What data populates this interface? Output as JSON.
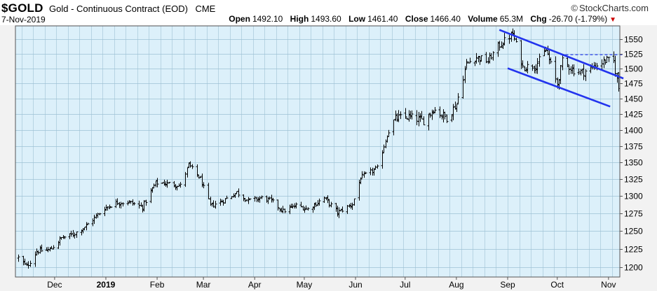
{
  "header": {
    "ticker": "$GOLD",
    "description": "Gold - Continuous Contract (EOD)",
    "exchange": "CME",
    "brand": "StockCharts.com",
    "date": "7-Nov-2019",
    "open_label": "Open",
    "open": "1492.10",
    "high_label": "High",
    "high": "1493.60",
    "low_label": "Low",
    "low": "1461.40",
    "close_label": "Close",
    "close": "1466.40",
    "volume_label": "Volume",
    "volume": "65.3M",
    "chg_label": "Chg",
    "chg": "-26.70 (-1.79%)"
  },
  "colors": {
    "plot_bg": "#dcf0fa",
    "grid": "#9ec2d4",
    "bars": "#000000",
    "trendline": "#2233ee",
    "down_arrow": "#cc0000"
  },
  "chart_data": {
    "type": "ohlc",
    "x_range": [
      "2018-11-09",
      "2019-11-07"
    ],
    "ylim": [
      1187,
      1573
    ],
    "y_scale": "log",
    "y_ticks": [
      1200,
      1225,
      1250,
      1275,
      1300,
      1325,
      1350,
      1375,
      1400,
      1425,
      1450,
      1475,
      1500,
      1525,
      1550
    ],
    "x_tick_labels": [
      {
        "date": "2018-12-01",
        "label": "Dec"
      },
      {
        "date": "2019-01-01",
        "label": "2019",
        "bold": true
      },
      {
        "date": "2019-02-01",
        "label": "Feb"
      },
      {
        "date": "2019-03-01",
        "label": "Mar"
      },
      {
        "date": "2019-04-01",
        "label": "Apr"
      },
      {
        "date": "2019-05-01",
        "label": "May"
      },
      {
        "date": "2019-06-01",
        "label": "Jun"
      },
      {
        "date": "2019-07-01",
        "label": "Jul"
      },
      {
        "date": "2019-08-01",
        "label": "Aug"
      },
      {
        "date": "2019-09-01",
        "label": "Sep"
      },
      {
        "date": "2019-10-01",
        "label": "Oct"
      },
      {
        "date": "2019-11-01",
        "label": "Nov"
      }
    ],
    "grid": true,
    "price_path": [
      [
        "2018-11-09",
        1213
      ],
      [
        "2018-11-14",
        1201
      ],
      [
        "2018-11-20",
        1222
      ],
      [
        "2018-11-28",
        1224
      ],
      [
        "2018-12-05",
        1240
      ],
      [
        "2018-12-12",
        1245
      ],
      [
        "2018-12-20",
        1257
      ],
      [
        "2018-12-31",
        1282
      ],
      [
        "2019-01-07",
        1290
      ],
      [
        "2019-01-15",
        1291
      ],
      [
        "2019-01-23",
        1284
      ],
      [
        "2019-01-31",
        1319
      ],
      [
        "2019-02-08",
        1318
      ],
      [
        "2019-02-15",
        1315
      ],
      [
        "2019-02-20",
        1346
      ],
      [
        "2019-02-27",
        1325
      ],
      [
        "2019-03-05",
        1286
      ],
      [
        "2019-03-12",
        1292
      ],
      [
        "2019-03-21",
        1305
      ],
      [
        "2019-03-28",
        1293
      ],
      [
        "2019-04-05",
        1297
      ],
      [
        "2019-04-11",
        1293
      ],
      [
        "2019-04-18",
        1278
      ],
      [
        "2019-04-26",
        1286
      ],
      [
        "2019-05-03",
        1281
      ],
      [
        "2019-05-13",
        1297
      ],
      [
        "2019-05-21",
        1276
      ],
      [
        "2019-05-30",
        1288
      ],
      [
        "2019-06-04",
        1327
      ],
      [
        "2019-06-14",
        1341
      ],
      [
        "2019-06-20",
        1392
      ],
      [
        "2019-06-25",
        1418
      ],
      [
        "2019-07-03",
        1421
      ],
      [
        "2019-07-12",
        1414
      ],
      [
        "2019-07-18",
        1433
      ],
      [
        "2019-07-26",
        1419
      ],
      [
        "2019-08-01",
        1441
      ],
      [
        "2019-08-07",
        1508
      ],
      [
        "2019-08-13",
        1519
      ],
      [
        "2019-08-20",
        1512
      ],
      [
        "2019-08-26",
        1537
      ],
      [
        "2019-09-04",
        1559
      ],
      [
        "2019-09-10",
        1502
      ],
      [
        "2019-09-18",
        1505
      ],
      [
        "2019-09-24",
        1531
      ],
      [
        "2019-10-01",
        1473
      ],
      [
        "2019-10-04",
        1512
      ],
      [
        "2019-10-11",
        1496
      ],
      [
        "2019-10-17",
        1494
      ],
      [
        "2019-10-24",
        1504
      ],
      [
        "2019-10-31",
        1514
      ],
      [
        "2019-11-04",
        1511
      ],
      [
        "2019-11-07",
        1466
      ]
    ],
    "last_bar": {
      "date": "2019-11-07",
      "open": 1492.1,
      "high": 1493.6,
      "low": 1461.4,
      "close": 1466.4
    },
    "annotations": [
      {
        "kind": "trendline",
        "style": "solid",
        "from": [
          "2019-08-27",
          1566
        ],
        "to": [
          "2019-11-10",
          1483
        ]
      },
      {
        "kind": "trendline",
        "style": "solid",
        "from": [
          "2019-09-01",
          1500
        ],
        "to": [
          "2019-11-02",
          1437
        ]
      },
      {
        "kind": "hline",
        "style": "dashed",
        "from": [
          "2019-10-03",
          1523
        ],
        "to": [
          "2019-11-10",
          1523
        ]
      }
    ]
  }
}
